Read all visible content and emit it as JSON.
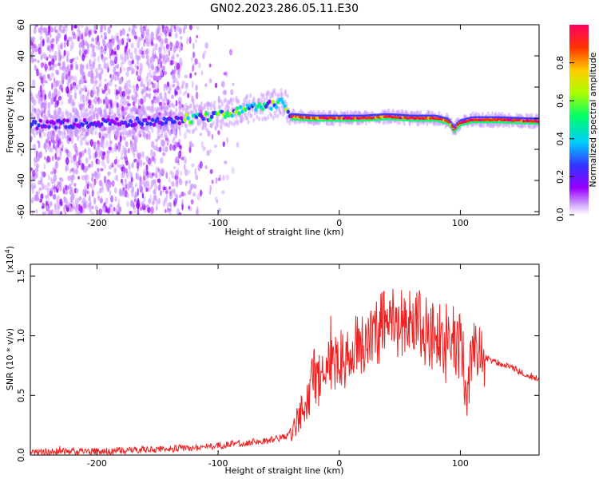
{
  "title": "GN02.2023.286.05.11.E30",
  "chart_data": [
    {
      "type": "heatmap",
      "xlabel": "Height of straight line (km)",
      "ylabel": "Frequency (Hz)",
      "xlim": [
        -255,
        165
      ],
      "ylim": [
        -62,
        60
      ],
      "x_ticks": [
        "-200",
        "-100",
        "0",
        "100"
      ],
      "y_ticks": [
        "-60",
        "-40",
        "-20",
        "0",
        "20",
        "40",
        "60"
      ],
      "x_tick_values": [
        -200,
        -100,
        0,
        100
      ],
      "y_tick_values": [
        -60,
        -40,
        -20,
        0,
        20,
        40,
        60
      ],
      "colorbar": {
        "label": "Normalized spectral amplitude",
        "range": [
          0,
          1
        ],
        "ticks": [
          "0.0",
          "0.2",
          "0.4",
          "0.6",
          "0.8"
        ],
        "tick_values": [
          0,
          0.2,
          0.4,
          0.6,
          0.8
        ],
        "colormap": [
          "#ffffff",
          "#cc99ff",
          "#9900ff",
          "#3333ff",
          "#00ccff",
          "#00ff66",
          "#aaff00",
          "#ffcc00",
          "#ff3300",
          "#ff0066"
        ]
      },
      "ridge_frequency": {
        "x": [
          -250,
          -200,
          -150,
          -120,
          -100,
          -80,
          -60,
          -45,
          -40,
          -20,
          0,
          20,
          40,
          60,
          80,
          90,
          95,
          100,
          110,
          130,
          165
        ],
        "y": [
          -4,
          -3,
          -2,
          0,
          2,
          5,
          8,
          10,
          1,
          0,
          0,
          0,
          1,
          0,
          0,
          -2,
          -7,
          -3,
          -1,
          -1,
          -2
        ]
      },
      "grid": false
    },
    {
      "type": "line",
      "xlabel": "Height of straight line (km)",
      "ylabel": "SNR (10 * v/v)",
      "y_multiplier": "(x10",
      "y_multiplier_exp": "4",
      "y_multiplier_close": ")",
      "xlim": [
        -255,
        165
      ],
      "ylim": [
        0,
        1.6
      ],
      "x_ticks": [
        "-200",
        "-100",
        "0",
        "100"
      ],
      "y_ticks": [
        "0.0",
        "0.5",
        "1.0",
        "1.5"
      ],
      "x_tick_values": [
        -200,
        -100,
        0,
        100
      ],
      "y_tick_values": [
        0,
        0.5,
        1.0,
        1.5
      ],
      "line_color": "#ee2222",
      "series": [
        {
          "x": [
            -255,
            -230,
            -200,
            -170,
            -150,
            -120,
            -100,
            -80,
            -60,
            -45,
            -35,
            -30,
            -25,
            -22,
            -18,
            -15,
            -10,
            0,
            10,
            20,
            30,
            40,
            50,
            60,
            70,
            80,
            90,
            100,
            105,
            110,
            120,
            130,
            140,
            150,
            165
          ],
          "values": [
            0.02,
            0.03,
            0.03,
            0.04,
            0.05,
            0.06,
            0.08,
            0.1,
            0.12,
            0.15,
            0.25,
            0.4,
            0.5,
            0.75,
            0.55,
            0.7,
            0.75,
            0.8,
            0.85,
            0.95,
            1.05,
            1.1,
            1.1,
            1.15,
            1.05,
            1.0,
            0.95,
            0.9,
            0.45,
            0.85,
            0.82,
            0.78,
            0.74,
            0.7,
            0.63
          ]
        }
      ],
      "grid": false
    }
  ]
}
